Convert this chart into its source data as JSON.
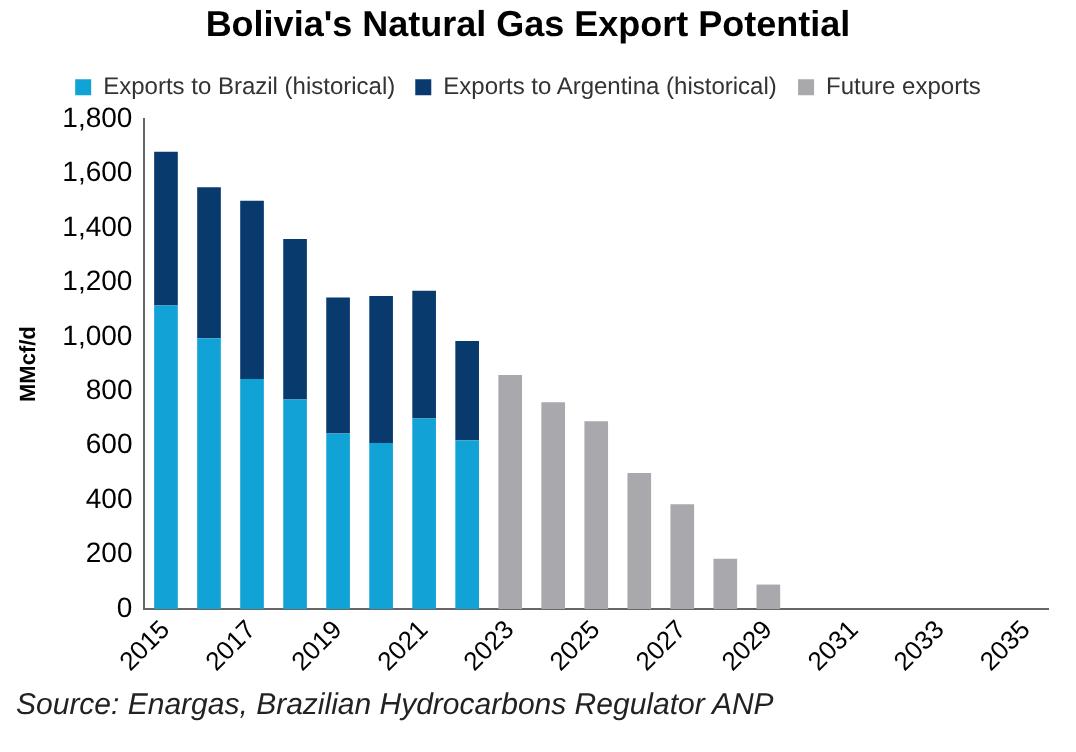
{
  "chart_data": {
    "type": "bar",
    "title": "Bolivia's Natural Gas Export Potential",
    "ylabel": "MMcf/d",
    "categories": [
      "2015",
      null,
      "2017",
      null,
      "2019",
      null,
      "2021",
      null,
      "2023",
      null,
      "2025",
      null,
      "2027",
      null,
      "2029",
      null,
      "2031",
      null,
      "2033",
      null,
      "2035"
    ],
    "series": [
      {
        "name": "Exports to Brazil (historical)",
        "color": "#12a3d6",
        "values": [
          1115,
          995,
          845,
          770,
          645,
          610,
          700,
          620,
          null,
          null,
          null,
          null,
          null,
          null,
          null,
          null,
          null,
          null,
          null,
          null,
          null
        ]
      },
      {
        "name": "Exports to Argentina (historical)",
        "color": "#083a6e",
        "values": [
          565,
          555,
          655,
          590,
          500,
          540,
          470,
          365,
          null,
          null,
          null,
          null,
          null,
          null,
          null,
          null,
          null,
          null,
          null,
          null,
          null
        ]
      },
      {
        "name": "Future exports",
        "color": "#a9a9ad",
        "values": [
          null,
          null,
          null,
          null,
          null,
          null,
          null,
          null,
          860,
          760,
          690,
          500,
          385,
          185,
          90,
          null,
          null,
          null,
          null,
          null,
          null
        ]
      }
    ],
    "stacked": true,
    "ylim": [
      0,
      1800
    ],
    "yticks": [
      {
        "value": 0,
        "label": "0"
      },
      {
        "value": 200,
        "label": "200"
      },
      {
        "value": 400,
        "label": "400"
      },
      {
        "value": 600,
        "label": "600"
      },
      {
        "value": 800,
        "label": "800"
      },
      {
        "value": 1000,
        "label": "1,000"
      },
      {
        "value": 1200,
        "label": "1,200"
      },
      {
        "value": 1400,
        "label": "1,400"
      },
      {
        "value": 1600,
        "label": "1,600"
      },
      {
        "value": 1800,
        "label": "1,800"
      }
    ],
    "grid": false,
    "legend": "top",
    "annotations": [
      "Source: Enargas, Brazilian Hydrocarbons Regulator ANP"
    ]
  }
}
